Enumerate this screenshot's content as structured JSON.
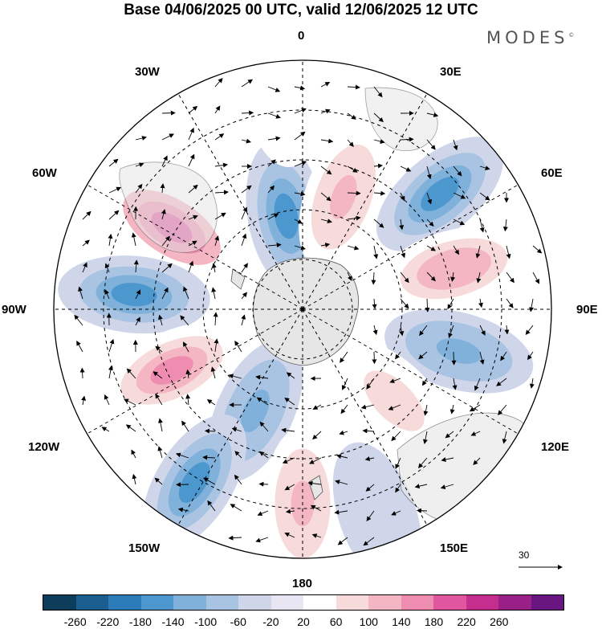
{
  "header": {
    "title": "Base 04/06/2025 00 UTC, valid 12/06/2025 12 UTC",
    "logo": "MODES",
    "logo_mark": "©"
  },
  "map": {
    "projection": "south-polar-stereographic",
    "longitude_labels": [
      "0",
      "30E",
      "60E",
      "90E",
      "120E",
      "150E",
      "180",
      "150W",
      "120W",
      "90W",
      "60W",
      "30W"
    ],
    "reference_vector_label": "30",
    "land_color": "#e6e6e6",
    "anomaly_centers": [
      {
        "lon": -58,
        "colat": 0.62,
        "value": 200
      },
      {
        "lon": -10,
        "colat": 0.38,
        "value": -170
      },
      {
        "lon": 20,
        "colat": 0.48,
        "value": 120
      },
      {
        "lon": 50,
        "colat": 0.72,
        "value": -170
      },
      {
        "lon": 75,
        "colat": 0.63,
        "value": 130
      },
      {
        "lon": -85,
        "colat": 0.68,
        "value": -150
      },
      {
        "lon": -115,
        "colat": 0.58,
        "value": 160
      },
      {
        "lon": 105,
        "colat": 0.65,
        "value": -120
      },
      {
        "lon": 135,
        "colat": 0.52,
        "value": 90
      },
      {
        "lon": -155,
        "colat": 0.45,
        "value": -110
      },
      {
        "lon": -148,
        "colat": 0.82,
        "value": -160
      },
      {
        "lon": 180,
        "colat": 0.78,
        "value": 110
      },
      {
        "lon": 160,
        "colat": 0.88,
        "value": -40
      },
      {
        "lon": -5,
        "colat": 0.88,
        "value": 40
      }
    ]
  },
  "colorbar": {
    "colors": [
      "#0e3d5c",
      "#1a5f8f",
      "#2b7cb8",
      "#4c97cd",
      "#7fb1db",
      "#a9c3e3",
      "#cfd6ea",
      "#e8e6f2",
      "#ffffff",
      "#f7dada",
      "#f4b6c2",
      "#ee8db0",
      "#e0569f",
      "#c52e8c",
      "#992086",
      "#6a1680"
    ],
    "tick_labels": [
      "-260",
      "-220",
      "-180",
      "-140",
      "-100",
      "-60",
      "-20",
      "20",
      "60",
      "100",
      "140",
      "180",
      "220",
      "260"
    ]
  }
}
